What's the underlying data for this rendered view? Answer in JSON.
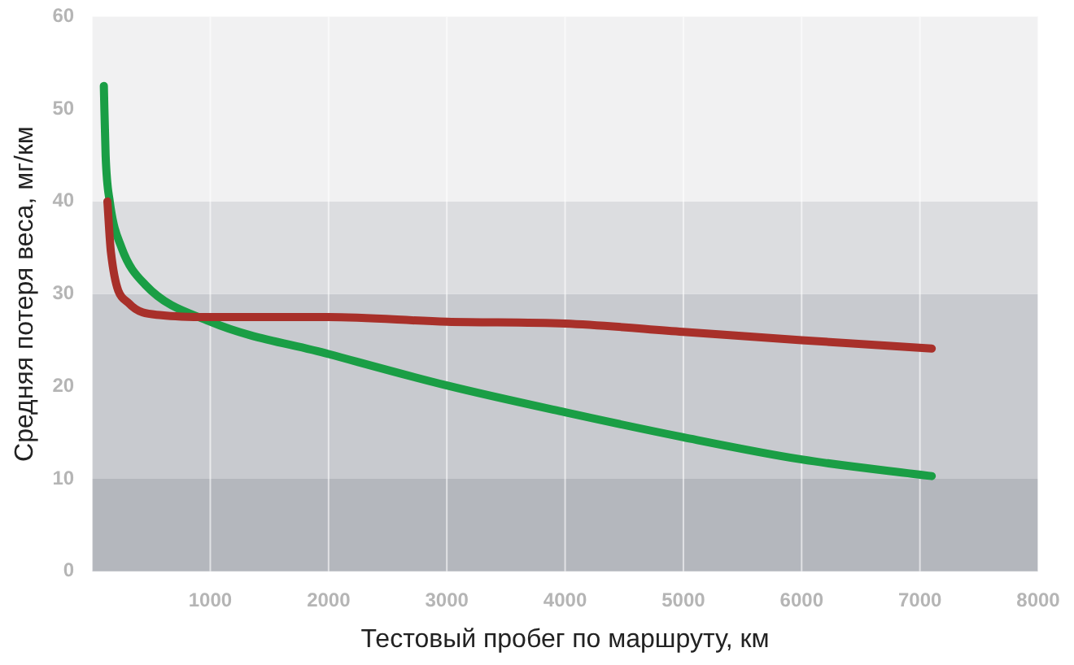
{
  "chart_data": {
    "type": "line",
    "xlabel": "Тестовый пробег по маршруту, км",
    "ylabel": "Средняя потеря веса, мг/км",
    "xlim": [
      0,
      8000
    ],
    "xticks": [
      {
        "value": 0,
        "label": null
      },
      1000,
      2000,
      3000,
      4000,
      5000,
      6000,
      7000,
      8000
    ],
    "ylim": [
      0,
      60
    ],
    "yticks": [
      0,
      10,
      20,
      30,
      40,
      50,
      60
    ],
    "grid": "x",
    "legend": false,
    "marker": "none",
    "line_style": "solid",
    "bands": [
      {
        "axis": "y",
        "from": 0,
        "to": 10,
        "color": "#b4b7bd"
      },
      {
        "axis": "y",
        "from": 10,
        "to": 30,
        "color": "#c8cacf"
      },
      {
        "axis": "y",
        "from": 30,
        "to": 40,
        "color": "#dcdde0"
      },
      {
        "axis": "y",
        "from": 40,
        "to": 60,
        "color": "#f1f1f2"
      }
    ],
    "series": [
      {
        "color": "#a8302a",
        "x": [
          130,
          160,
          310,
          590,
          1000,
          2000,
          3000,
          4000,
          5000,
          6000,
          7100
        ],
        "values": [
          40,
          34.5,
          29,
          27.7,
          27.5,
          27.5,
          27,
          26.8,
          25.9,
          25,
          24.1
        ]
      },
      {
        "color": "#1a9e45",
        "x": [
          100,
          115,
          150,
          250,
          450,
          1000,
          2000,
          3000,
          4000,
          5000,
          6000,
          7100
        ],
        "values": [
          52.5,
          45,
          40,
          35,
          31,
          27,
          23.5,
          20.1,
          17.2,
          14.5,
          12.1,
          10.3
        ]
      }
    ]
  }
}
